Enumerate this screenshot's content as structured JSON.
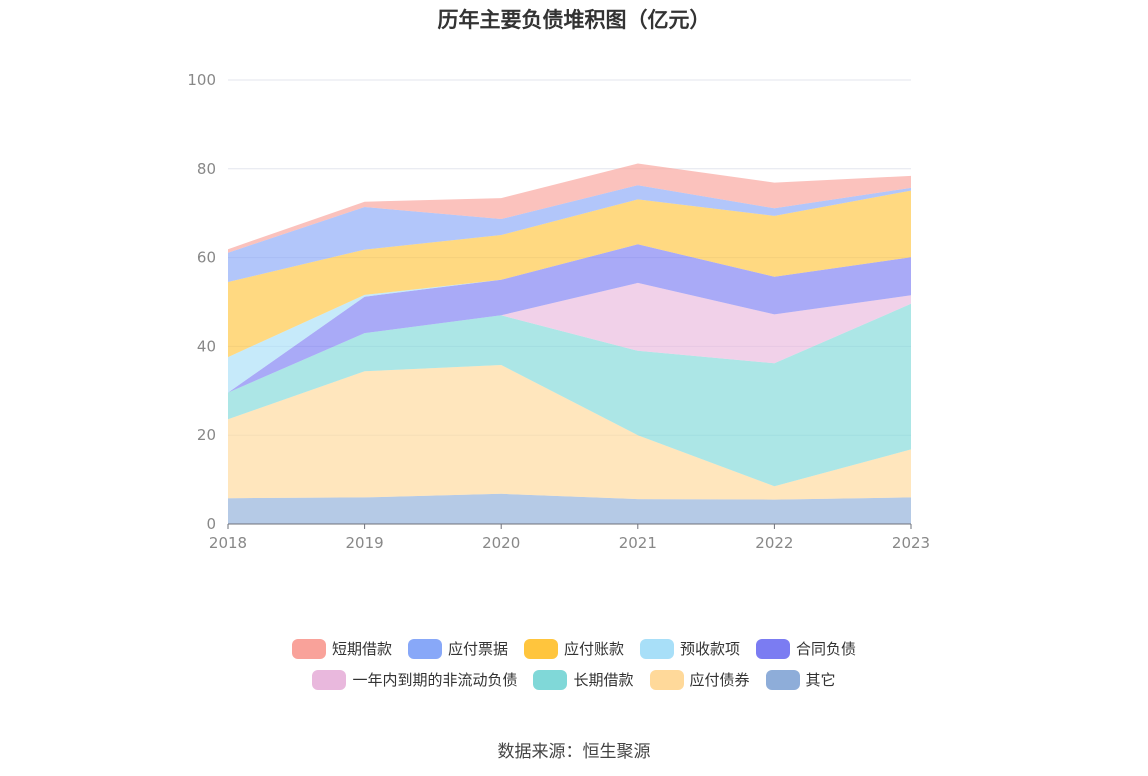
{
  "chart_data": {
    "type": "area",
    "title": "历年主要负债堆积图（亿元）",
    "stacked": true,
    "categories": [
      "2018",
      "2019",
      "2020",
      "2021",
      "2022",
      "2023"
    ],
    "ylim": [
      0,
      100
    ],
    "yticks": [
      0,
      20,
      40,
      60,
      80,
      100
    ],
    "grid": true,
    "legend_position": "bottom",
    "series": [
      {
        "name": "其它",
        "color": "#8eadd9",
        "values": [
          5.8,
          6.0,
          6.8,
          5.6,
          5.5,
          6.0
        ]
      },
      {
        "name": "应付债券",
        "color": "#ffd99a",
        "values": [
          17.8,
          28.4,
          29.0,
          14.4,
          3.0,
          10.8
        ]
      },
      {
        "name": "长期借款",
        "color": "#80d8d8",
        "values": [
          6.0,
          8.6,
          11.2,
          19.0,
          27.7,
          32.8
        ]
      },
      {
        "name": "一年内到期的非流动负债",
        "color": "#e9b8dd",
        "values": [
          0.0,
          0.0,
          0.0,
          15.3,
          11.0,
          1.9
        ]
      },
      {
        "name": "合同负债",
        "color": "#7b7cf2",
        "values": [
          0.0,
          8.2,
          8.0,
          8.7,
          8.5,
          8.6
        ]
      },
      {
        "name": "预收款项",
        "color": "#a8dff8",
        "values": [
          8.0,
          0.4,
          0.0,
          0.0,
          0.0,
          0.0
        ]
      },
      {
        "name": "应付账款",
        "color": "#ffc53d",
        "values": [
          16.9,
          10.2,
          10.1,
          10.1,
          13.7,
          15.0
        ]
      },
      {
        "name": "应付票据",
        "color": "#88a8f8",
        "values": [
          6.6,
          9.6,
          3.6,
          3.2,
          1.7,
          0.6
        ]
      },
      {
        "name": "短期借款",
        "color": "#f9a29a",
        "values": [
          0.8,
          1.2,
          4.7,
          4.9,
          5.8,
          2.7
        ]
      }
    ]
  },
  "legend_rows": [
    [
      "短期借款",
      "应付票据",
      "应付账款",
      "预收款项",
      "合同负债"
    ],
    [
      "一年内到期的非流动负债",
      "长期借款",
      "应付债券",
      "其它"
    ]
  ],
  "source_text": "数据来源：恒生聚源"
}
